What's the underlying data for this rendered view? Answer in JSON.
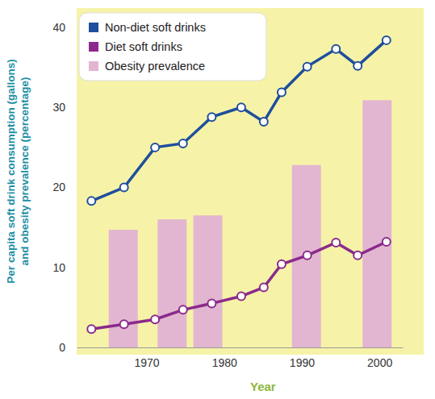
{
  "chart_data": {
    "type": "line",
    "x_label": "Year",
    "y_label": [
      "Per capita soft drink consumption (gallons)",
      "and obesity prevalence (percentage)"
    ],
    "xlim": [
      1961,
      2003
    ],
    "xticks": [
      1970,
      1980,
      1990,
      2000
    ],
    "ylim": [
      0,
      40
    ],
    "yticks": [
      0,
      10,
      20,
      30,
      40
    ],
    "grid": false,
    "legend": "upper left",
    "series": [
      {
        "name": "Non-diet soft drinks",
        "type": "line",
        "color": "#1f4e9c",
        "marker": "circle",
        "line_style": "solid",
        "x": [
          1962.9,
          1967.1,
          1971.1,
          1974.7,
          1978.4,
          1982.2,
          1985.1,
          1987.4,
          1990.7,
          1994.4,
          1997.2,
          2000.9
        ],
        "values": [
          18.3,
          20.0,
          25.0,
          25.5,
          28.8,
          30.0,
          28.2,
          31.9,
          35.1,
          37.3,
          35.2,
          38.4
        ]
      },
      {
        "name": "Diet soft drinks",
        "type": "line",
        "color": "#8b2a8b",
        "marker": "circle",
        "line_style": "solid",
        "x": [
          1962.9,
          1967.1,
          1971.1,
          1974.7,
          1978.4,
          1982.2,
          1985.1,
          1987.4,
          1990.7,
          1994.4,
          1997.2,
          2000.9
        ],
        "values": [
          2.3,
          2.9,
          3.5,
          4.7,
          5.5,
          6.4,
          7.5,
          10.4,
          11.5,
          13.1,
          11.5,
          13.2
        ]
      },
      {
        "name": "Obesity prevalence",
        "type": "bar",
        "color": "#e2b6d0",
        "x": [
          1967.0,
          1973.3,
          1977.9,
          1990.6,
          1999.7
        ],
        "values": [
          14.7,
          16.0,
          16.5,
          22.8,
          30.9
        ]
      }
    ]
  }
}
